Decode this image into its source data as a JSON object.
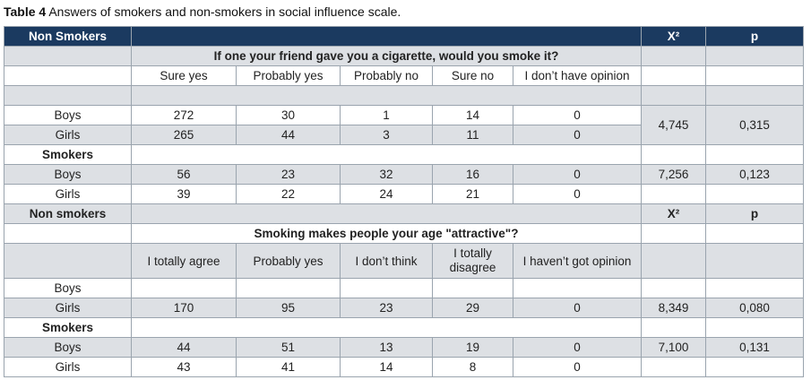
{
  "caption": {
    "label": "Table 4",
    "text": "Answers of smokers and non-smokers in social influence scale."
  },
  "table1": {
    "group1": "Non Smokers",
    "chi": "X²",
    "p": "p",
    "question": "If one your friend gave you a cigarette, would you smoke it?",
    "options": [
      "Sure yes",
      "Probably yes",
      "Probably no",
      "Sure no",
      "I don’t have opinion"
    ],
    "nonsmokers": {
      "boys": {
        "label": "Boys",
        "values": [
          "272",
          "30",
          "1",
          "14",
          "0"
        ]
      },
      "girls": {
        "label": "Girls",
        "values": [
          "265",
          "44",
          "3",
          "11",
          "0"
        ]
      },
      "chi": "4,745",
      "p": "0,315"
    },
    "group2": "Smokers",
    "smokers": {
      "boys": {
        "label": "Boys",
        "values": [
          "56",
          "23",
          "32",
          "16",
          "0"
        ],
        "chi": "7,256",
        "p": "0,123"
      },
      "girls": {
        "label": "Girls",
        "values": [
          "39",
          "22",
          "24",
          "21",
          "0"
        ]
      }
    }
  },
  "table2": {
    "group1": "Non smokers",
    "chi": "X²",
    "p": "p",
    "question": "Smoking makes people your age \"attractive\"?",
    "options": [
      "I totally agree",
      "Probably yes",
      "I don’t think",
      "I totally disagree",
      "I haven’t got opinion"
    ],
    "nonsmokers": {
      "boys": {
        "label": "Boys"
      },
      "girls": {
        "label": "Girls",
        "values": [
          "170",
          "95",
          "23",
          "29",
          "0"
        ],
        "chi": "8,349",
        "p": "0,080"
      }
    },
    "group2": "Smokers",
    "smokers": {
      "boys": {
        "label": "Boys",
        "values": [
          "44",
          "51",
          "13",
          "19",
          "0"
        ],
        "chi": "7,100",
        "p": "0,131"
      },
      "girls": {
        "label": "Girls",
        "values": [
          "43",
          "41",
          "14",
          "8",
          "0"
        ]
      }
    }
  }
}
